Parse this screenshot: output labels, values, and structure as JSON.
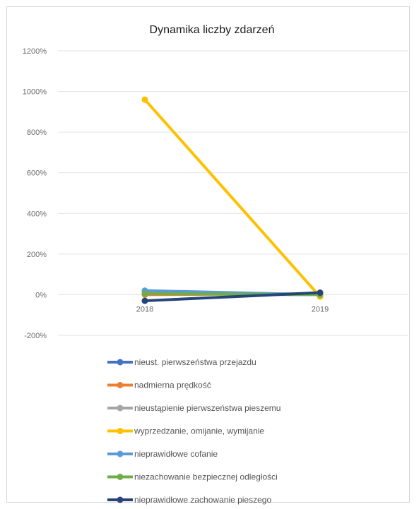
{
  "chart_data": {
    "type": "line",
    "title": "Dynamika liczby zdarzeń",
    "x": [
      "2018",
      "2019"
    ],
    "y_ticks": [
      "1200%",
      "1000%",
      "800%",
      "600%",
      "400%",
      "200%",
      "0%",
      "-200%"
    ],
    "ylim": [
      -200,
      1200
    ],
    "y_unit": "%",
    "grid": true,
    "legend_position": "bottom",
    "series": [
      {
        "name": "nieust. pierwszeństwa przejazdu",
        "color": "#4472c4",
        "values": [
          5,
          0
        ]
      },
      {
        "name": "nadmierna prędkość",
        "color": "#ed7d31",
        "values": [
          0,
          5
        ]
      },
      {
        "name": "nieustąpienie pierwszeństwa pieszemu",
        "color": "#a5a5a5",
        "values": [
          10,
          0
        ]
      },
      {
        "name": "wyprzedzanie, omijanie, wymijanie",
        "color": "#ffc000",
        "values": [
          960,
          -10
        ]
      },
      {
        "name": "nieprawidłowe cofanie",
        "color": "#5b9bd5",
        "values": [
          20,
          0
        ]
      },
      {
        "name": "niezachowanie bezpiecznej odległości",
        "color": "#70ad47",
        "values": [
          5,
          0
        ]
      },
      {
        "name": "nieprawidłowe zachowanie pieszego",
        "color": "#264478",
        "values": [
          -30,
          10
        ]
      }
    ]
  }
}
